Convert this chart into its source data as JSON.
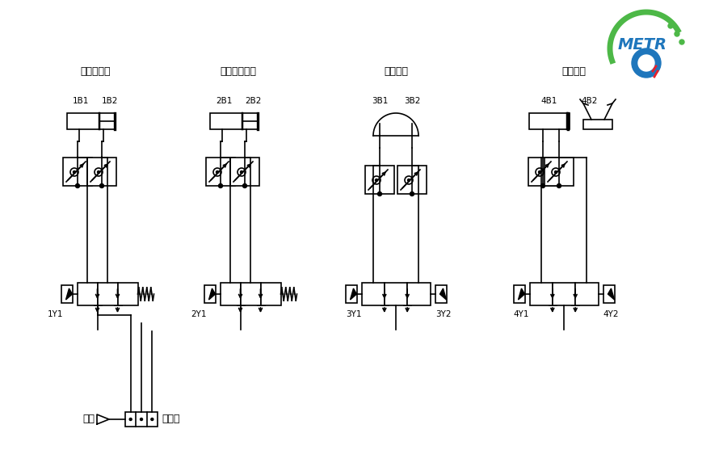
{
  "title": "",
  "background_color": "#ffffff",
  "line_color": "#000000",
  "line_width": 1.2,
  "labels": {
    "section1": "提升台气缸",
    "section2": "手臂伸出气缸",
    "section3": "摆动气缸",
    "section4": "手指气缸",
    "b1_1": "1B1",
    "b2_1": "1B2",
    "b1_2": "2B1",
    "b2_2": "2B2",
    "b1_3": "3B1",
    "b2_3": "3B2",
    "b1_4": "4B1",
    "b2_4": "4B2",
    "y1_1": "1Y1",
    "y1_2": "2Y1",
    "y1_3": "3Y1",
    "y2_3": "3Y2",
    "y1_4": "4Y1",
    "y2_4": "4Y2",
    "source": "气源",
    "manifold": "汇流板"
  },
  "logo_text": "METR",
  "logo_green": "#4db847",
  "logo_blue": "#1e76bc",
  "logo_red": "#e8212b"
}
